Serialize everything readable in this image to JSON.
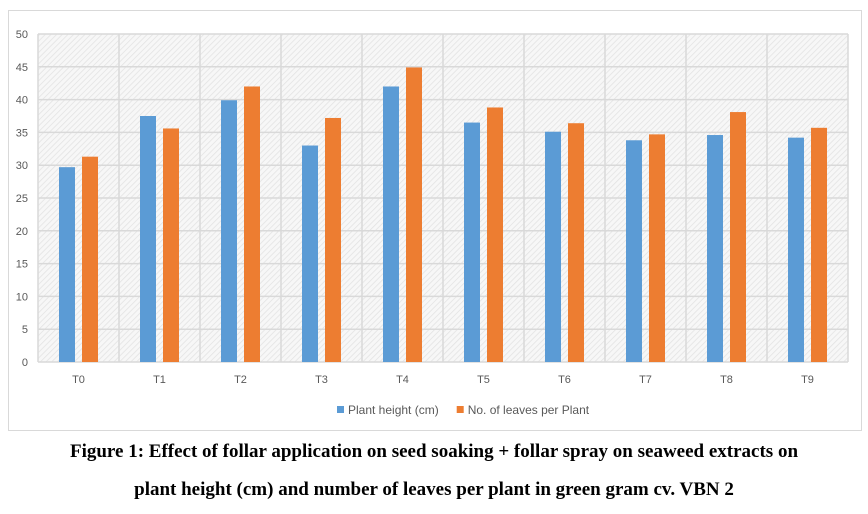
{
  "chart_data": {
    "type": "bar",
    "title": "",
    "xlabel": "",
    "ylabel": "",
    "categories": [
      "T0",
      "T1",
      "T2",
      "T3",
      "T4",
      "T5",
      "T6",
      "T7",
      "T8",
      "T9"
    ],
    "series": [
      {
        "name": "Plant height (cm)",
        "color": "#5B9BD5",
        "values": [
          29.7,
          37.5,
          39.9,
          33.0,
          42.0,
          36.5,
          35.1,
          33.8,
          34.6,
          34.2
        ]
      },
      {
        "name": "No. of leaves per Plant",
        "color": "#ED7D31",
        "values": [
          31.3,
          35.6,
          42.0,
          37.2,
          44.9,
          38.8,
          36.4,
          34.7,
          38.1,
          35.7
        ]
      }
    ],
    "ylim": [
      0,
      50
    ],
    "yticks": [
      0,
      5,
      10,
      15,
      20,
      25,
      30,
      35,
      40,
      45,
      50
    ],
    "grid": true,
    "legend_position": "bottom"
  },
  "caption": {
    "line1": "Figure 1: Effect of follar application on seed soaking + follar spray on seaweed extracts on",
    "line2": "plant height (cm) and number of leaves per plant in green gram cv. VBN 2"
  }
}
